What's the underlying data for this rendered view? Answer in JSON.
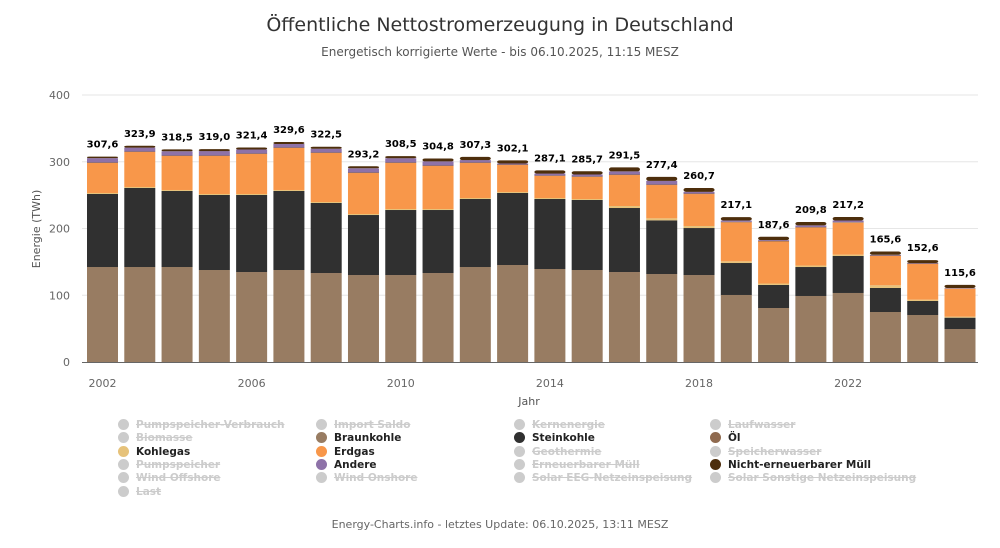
{
  "title": "Öffentliche Nettostromerzeugung in Deutschland",
  "subtitle": "Energetisch korrigierte Werte - bis 06.10.2025, 11:15 MESZ",
  "footer": "Energy-Charts.info - letztes Update: 06.10.2025, 13:11 MESZ",
  "chart_data": {
    "type": "bar",
    "stacked": true,
    "title": "Öffentliche Nettostromerzeugung in Deutschland",
    "subtitle": "Energetisch korrigierte Werte - bis 06.10.2025, 11:15 MESZ",
    "xlabel": "Jahr",
    "ylabel": "Energie (TWh)",
    "ylim": [
      0,
      400
    ],
    "yticks": [
      "0",
      "100",
      "200",
      "300",
      "400"
    ],
    "xtick_labels": [
      "2002",
      "2006",
      "2010",
      "2014",
      "2018",
      "2022"
    ],
    "grid": true,
    "legend_position": "bottom",
    "categories": [
      "2002",
      "2003",
      "2004",
      "2005",
      "2006",
      "2007",
      "2008",
      "2009",
      "2010",
      "2011",
      "2012",
      "2013",
      "2014",
      "2015",
      "2016",
      "2017",
      "2018",
      "2019",
      "2020",
      "2021",
      "2022",
      "2023",
      "2024",
      "2025"
    ],
    "totals": [
      "307,6",
      "323,9",
      "318,5",
      "319,0",
      "321,4",
      "329,6",
      "322,5",
      "293,2",
      "308,5",
      "304,8",
      "307,3",
      "302,1",
      "287,1",
      "285,7",
      "291,5",
      "277,4",
      "260,7",
      "217,1",
      "187,6",
      "209,8",
      "217,2",
      "165,6",
      "152,6",
      "115,6"
    ],
    "series": [
      {
        "name": "Braunkohle",
        "color": "#987c62",
        "values": [
          142.3,
          142.3,
          142.3,
          137.8,
          134.8,
          137.8,
          133.3,
          130.3,
          130.3,
          133.3,
          142.3,
          145.3,
          139.3,
          137.8,
          134.8,
          131.8,
          130.3,
          100.4,
          80.9,
          98.9,
          103.4,
          74.9,
          70.4,
          49.4
        ]
      },
      {
        "name": "Steinkohle",
        "color": "#303030",
        "values": [
          109.4,
          118.4,
          113.9,
          112.4,
          115.4,
          118.4,
          104.9,
          89.9,
          97.4,
          94.4,
          101.9,
          107.9,
          104.9,
          104.9,
          95.9,
          80.4,
          70.4,
          47.9,
          34.5,
          43.4,
          55.4,
          36.0,
          21.0,
          17.0
        ]
      },
      {
        "name": "Kohlegas",
        "color": "#e6c27a",
        "values": [
          1.5,
          1.5,
          1.5,
          1.5,
          1.5,
          1.5,
          1.5,
          1.5,
          1.5,
          1.5,
          1.5,
          1.5,
          1.5,
          1.5,
          3.0,
          3.0,
          3.0,
          2.5,
          2.2,
          2.2,
          2.0,
          4.0,
          2.0,
          1.5
        ]
      },
      {
        "name": "Erdgas",
        "color": "#f8974a",
        "values": [
          44.9,
          52.4,
          50.9,
          56.9,
          59.9,
          62.9,
          73.4,
          61.4,
          68.9,
          64.4,
          52.4,
          40.4,
          33.0,
          33.0,
          46.4,
          49.9,
          47.9,
          58.4,
          62.9,
          56.9,
          47.9,
          43.9,
          53.4,
          41.9
        ]
      },
      {
        "name": "Öl",
        "color": "#8f6a4f",
        "values": [
          0.8,
          0.8,
          0.8,
          0.8,
          0.8,
          0.8,
          0.8,
          0.8,
          0.8,
          0.8,
          0.8,
          0.8,
          0.8,
          0.8,
          0.8,
          0.8,
          0.8,
          0.8,
          0.8,
          0.8,
          0.8,
          0.8,
          0.8,
          0.6
        ]
      },
      {
        "name": "Andere",
        "color": "#8e72a8",
        "values": [
          6.5,
          5.8,
          6.3,
          6.6,
          6.0,
          5.2,
          5.6,
          6.3,
          6.4,
          6.2,
          3.6,
          1.5,
          2.8,
          2.9,
          4.6,
          5.5,
          2.5,
          1.9,
          1.3,
          2.4,
          2.5,
          1.0,
          0.8,
          0.5
        ]
      },
      {
        "name": "Nicht-erneuerbarer Müll",
        "color": "#4d2e0c",
        "values": [
          2.2,
          2.7,
          2.8,
          3.0,
          3.0,
          3.0,
          3.0,
          3.0,
          3.2,
          4.2,
          4.8,
          4.7,
          4.8,
          4.8,
          6.0,
          6.0,
          5.8,
          5.2,
          5.0,
          5.2,
          5.2,
          5.0,
          4.2,
          4.7
        ]
      }
    ],
    "legend": [
      {
        "name": "Pumpspeicher-Verbrauch",
        "visible": false,
        "color": "#cccccc"
      },
      {
        "name": "Import Saldo",
        "visible": false,
        "color": "#cccccc"
      },
      {
        "name": "Kernenergie",
        "visible": false,
        "color": "#cccccc"
      },
      {
        "name": "Laufwasser",
        "visible": false,
        "color": "#cccccc"
      },
      {
        "name": "Biomasse",
        "visible": false,
        "color": "#cccccc"
      },
      {
        "name": "Braunkohle",
        "visible": true,
        "color": "#987c62"
      },
      {
        "name": "Steinkohle",
        "visible": true,
        "color": "#303030"
      },
      {
        "name": "Öl",
        "visible": true,
        "color": "#8f6a4f"
      },
      {
        "name": "Kohlegas",
        "visible": true,
        "color": "#e6c27a"
      },
      {
        "name": "Erdgas",
        "visible": true,
        "color": "#f8974a"
      },
      {
        "name": "Geothermie",
        "visible": false,
        "color": "#cccccc"
      },
      {
        "name": "Speicherwasser",
        "visible": false,
        "color": "#cccccc"
      },
      {
        "name": "Pumpspeicher",
        "visible": false,
        "color": "#cccccc"
      },
      {
        "name": "Andere",
        "visible": true,
        "color": "#8e72a8"
      },
      {
        "name": "Erneuerbarer Müll",
        "visible": false,
        "color": "#cccccc"
      },
      {
        "name": "Nicht-erneuerbarer Müll",
        "visible": true,
        "color": "#4d2e0c"
      },
      {
        "name": "Wind Offshore",
        "visible": false,
        "color": "#cccccc"
      },
      {
        "name": "Wind Onshore",
        "visible": false,
        "color": "#cccccc"
      },
      {
        "name": "Solar EEG-Netzeinspeisung",
        "visible": false,
        "color": "#cccccc"
      },
      {
        "name": "Solar Sonstige Netzeinspeisung",
        "visible": false,
        "color": "#cccccc"
      },
      {
        "name": "Last",
        "visible": false,
        "color": "#cccccc"
      }
    ]
  }
}
